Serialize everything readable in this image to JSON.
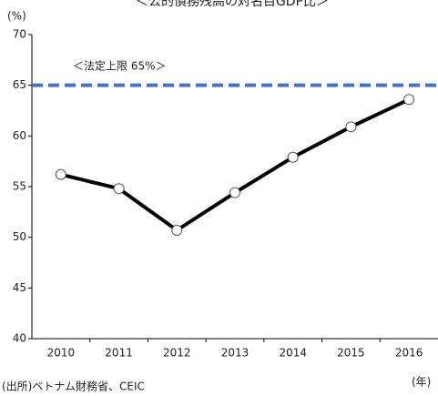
{
  "chart_data": {
    "type": "line",
    "title": "＜公的債務残高の対名目GDP比＞",
    "y_label": "(%)",
    "x_label": "(年)",
    "source": "(出所)ベトナム財務省、CEIC",
    "annotation": "＜法定上限 65%＞",
    "reference_line": {
      "value": 65,
      "color": "#4472c4"
    },
    "categories": [
      "2010",
      "2011",
      "2012",
      "2013",
      "2014",
      "2015",
      "2016"
    ],
    "series": [
      {
        "name": "公的債務残高",
        "color": "#000000",
        "values": [
          56.2,
          54.8,
          50.7,
          54.4,
          57.9,
          60.9,
          63.6
        ]
      }
    ],
    "ylim": [
      40,
      70
    ],
    "yticks": [
      40,
      45,
      50,
      55,
      60,
      65,
      70
    ],
    "grid": false
  }
}
